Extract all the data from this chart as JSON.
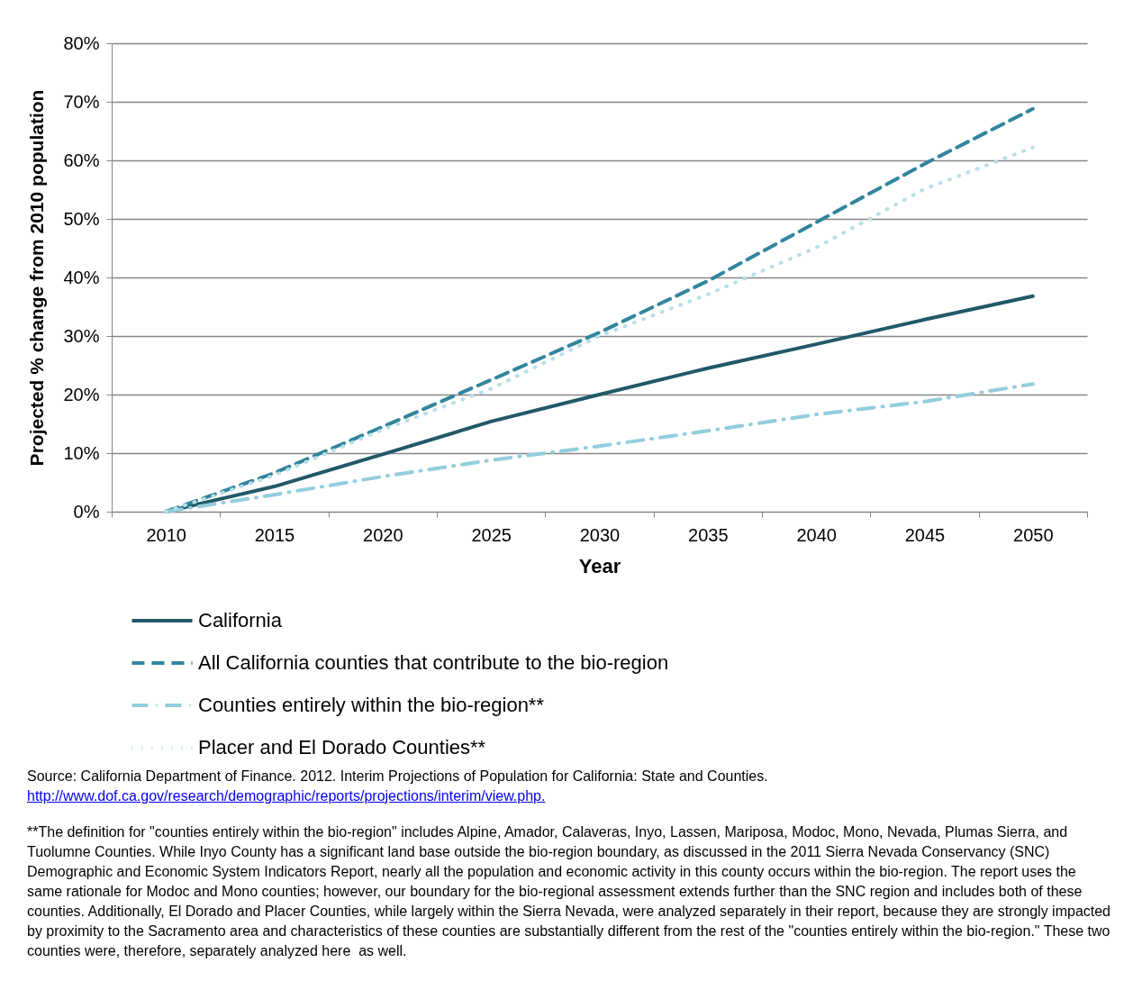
{
  "chart_data": {
    "type": "line",
    "xlabel": "Year",
    "ylabel": "Projected % change from 2010 population",
    "categories": [
      "2010",
      "2015",
      "2020",
      "2025",
      "2030",
      "2035",
      "2040",
      "2045",
      "2050"
    ],
    "ylim": [
      0,
      80
    ],
    "yticks": [
      {
        "value": 0,
        "label": "0%"
      },
      {
        "value": 10,
        "label": "10%"
      },
      {
        "value": 20,
        "label": "20%"
      },
      {
        "value": 30,
        "label": "30%"
      },
      {
        "value": 40,
        "label": "40%"
      },
      {
        "value": 50,
        "label": "50%"
      },
      {
        "value": 60,
        "label": "60%"
      },
      {
        "value": 70,
        "label": "70%"
      },
      {
        "value": 80,
        "label": "80%"
      }
    ],
    "grid": "y",
    "legend": "bottom left",
    "series": [
      {
        "name": "California",
        "color": "#215968",
        "line_style": "solid",
        "values": [
          0,
          4.3,
          9.8,
          15.4,
          20,
          24.5,
          28.6,
          32.8,
          36.8
        ]
      },
      {
        "name": "All California counties that contribute to the bio-region",
        "color": "#31859c",
        "line_style": "dashed",
        "values": [
          0,
          6.6,
          14.5,
          22.5,
          30.6,
          39.4,
          49.4,
          59.4,
          68.8
        ]
      },
      {
        "name": "Counties entirely within the bio-region**",
        "color": "#93cddd",
        "line_style": "dashdot",
        "values": [
          0,
          2.9,
          6,
          8.8,
          11.2,
          13.8,
          16.6,
          18.8,
          21.8
        ]
      },
      {
        "name": "Placer and El Dorado Counties**",
        "color": "#b7dee8",
        "line_style": "dotted",
        "values": [
          0,
          6.2,
          14,
          21,
          30,
          37.1,
          45.1,
          55.1,
          62.2
        ]
      }
    ],
    "annotations": [
      "Source: California Department of Finance. 2012. Interim Projections of Population for California: State and Counties.",
      "http://www.dof.ca.gov/research/demographic/reports/projections/interim/view.php.",
      "**The definition for \"counties entirely within the bio-region\" includes Alpine, Amador, Calaveras, Inyo, Lassen, Mariposa, Modoc, Mono, Nevada, Plumas Sierra, and Tuolumne Counties. While Inyo County has a significant land base outside the bio-region boundary, as discussed in the 2011 Sierra Nevada Conservancy (SNC) Demographic and Economic System Indicators Report, nearly all the population and economic activity in this county occurs within the bio-region. The report uses the same rationale for Modoc and Mono counties; however, our boundary for the bio-regional assessment extends further than the SNC region and includes both of these counties. Additionally, El Dorado and Placer Counties, while largely within the Sierra Nevada, were analyzed separately in their report, because they are strongly impacted by proximity to the Sacramento area and characteristics of these counties are substantially different from the rest of the \"counties entirely within the bio-region.\" These two counties were, therefore, separately analyzed here  as well."
    ]
  }
}
